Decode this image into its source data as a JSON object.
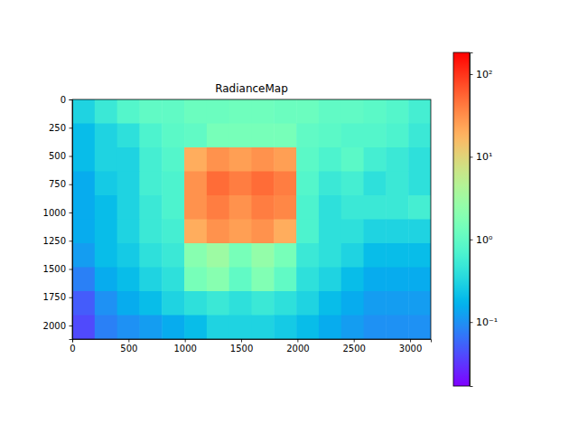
{
  "chart_data": {
    "type": "heatmap",
    "title": "RadianceMap",
    "xlim": [
      0,
      3184
    ],
    "ylim": [
      2120,
      0
    ],
    "xticks": [
      0,
      500,
      1000,
      1500,
      2000,
      2500,
      3000
    ],
    "yticks": [
      0,
      250,
      500,
      750,
      1000,
      1250,
      1500,
      1750,
      2000
    ],
    "log": true,
    "cells": [
      [
        0.3,
        0.5,
        0.8,
        1,
        1,
        1.2,
        1.2,
        1.3,
        1.3,
        1.2,
        1.2,
        1,
        1,
        0.9,
        0.8,
        0.6
      ],
      [
        0.2,
        0.3,
        0.4,
        0.7,
        0.9,
        1,
        1.5,
        1.5,
        1.5,
        1.5,
        1,
        0.9,
        0.8,
        0.8,
        0.7,
        0.5
      ],
      [
        0.2,
        0.3,
        0.3,
        0.6,
        0.8,
        20,
        30,
        25,
        30,
        25,
        0.9,
        0.7,
        0.9,
        0.6,
        0.5,
        0.4
      ],
      [
        0.15,
        0.25,
        0.3,
        0.6,
        0.7,
        30,
        50,
        40,
        50,
        40,
        0.8,
        0.5,
        0.6,
        0.4,
        0.5,
        0.4
      ],
      [
        0.15,
        0.2,
        0.3,
        0.5,
        0.7,
        30,
        40,
        30,
        40,
        35,
        0.7,
        0.4,
        0.5,
        0.5,
        0.5,
        0.6
      ],
      [
        0.15,
        0.2,
        0.3,
        0.5,
        0.6,
        20,
        30,
        25,
        30,
        20,
        0.7,
        0.4,
        0.4,
        0.3,
        0.3,
        0.3
      ],
      [
        0.12,
        0.2,
        0.25,
        0.4,
        0.5,
        2,
        3,
        1.5,
        2.5,
        1.5,
        0.5,
        0.4,
        0.3,
        0.2,
        0.2,
        0.2
      ],
      [
        0.08,
        0.15,
        0.2,
        0.3,
        0.4,
        1.5,
        2,
        1,
        1.8,
        1,
        0.4,
        0.3,
        0.2,
        0.15,
        0.15,
        0.15
      ],
      [
        0.05,
        0.1,
        0.15,
        0.2,
        0.3,
        0.4,
        0.5,
        0.4,
        0.5,
        0.4,
        0.3,
        0.2,
        0.15,
        0.12,
        0.12,
        0.12
      ],
      [
        0.04,
        0.08,
        0.1,
        0.12,
        0.15,
        0.2,
        0.3,
        0.3,
        0.3,
        0.25,
        0.2,
        0.15,
        0.12,
        0.1,
        0.1,
        0.1
      ]
    ],
    "colorbar": {
      "range": [
        0.0168,
        183
      ],
      "ticks": [
        {
          "value": 0.1,
          "label": "10⁻¹"
        },
        {
          "value": 1,
          "label": "10⁰"
        },
        {
          "value": 10,
          "label": "10¹"
        },
        {
          "value": 100,
          "label": "10²"
        }
      ]
    }
  }
}
